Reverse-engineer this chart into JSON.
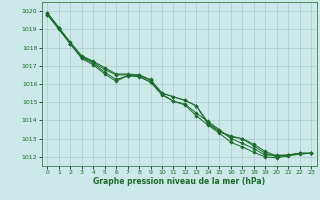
{
  "background_color": "#cce8e8",
  "grid_color": "#aacccc",
  "line_color": "#1a6b2a",
  "marker_color": "#1a6b2a",
  "xlabel": "Graphe pression niveau de la mer (hPa)",
  "xlabel_color": "#1a6b2a",
  "ylim": [
    1011.5,
    1020.5
  ],
  "xlim": [
    -0.5,
    23.5
  ],
  "yticks": [
    1012,
    1013,
    1014,
    1015,
    1016,
    1017,
    1018,
    1019,
    1020
  ],
  "xticks": [
    0,
    1,
    2,
    3,
    4,
    5,
    6,
    7,
    8,
    9,
    10,
    11,
    12,
    13,
    14,
    15,
    16,
    17,
    18,
    19,
    20,
    21,
    22,
    23
  ],
  "series": [
    [
      1019.9,
      1019.1,
      1018.2,
      1017.5,
      1017.2,
      1016.8,
      1016.5,
      1016.5,
      1016.5,
      1016.2,
      1015.5,
      1015.3,
      1015.1,
      1014.8,
      1013.8,
      1013.4,
      1013.1,
      1013.0,
      1012.6,
      1012.2,
      1012.0,
      1012.1,
      1012.2,
      1012.2
    ],
    [
      1019.9,
      1019.1,
      1018.3,
      1017.55,
      1017.25,
      1016.9,
      1016.55,
      1016.55,
      1016.5,
      1016.25,
      1015.5,
      1015.3,
      1015.1,
      1014.8,
      1013.9,
      1013.4,
      1013.15,
      1013.0,
      1012.7,
      1012.3,
      1012.05,
      1012.1,
      1012.2,
      1012.2
    ],
    [
      1019.8,
      1019.05,
      1018.2,
      1017.45,
      1017.15,
      1016.65,
      1016.25,
      1016.45,
      1016.4,
      1016.1,
      1015.4,
      1015.05,
      1014.85,
      1014.25,
      1013.75,
      1013.3,
      1012.8,
      1012.55,
      1012.25,
      1012.0,
      1011.95,
      1012.05,
      1012.15,
      1012.2
    ],
    [
      1019.8,
      1019.0,
      1018.2,
      1017.4,
      1017.05,
      1016.55,
      1016.15,
      1016.45,
      1016.45,
      1016.1,
      1015.45,
      1015.05,
      1014.9,
      1014.4,
      1013.95,
      1013.5,
      1013.0,
      1012.75,
      1012.45,
      1012.1,
      1012.1,
      1012.1,
      1012.2,
      1012.2
    ]
  ]
}
